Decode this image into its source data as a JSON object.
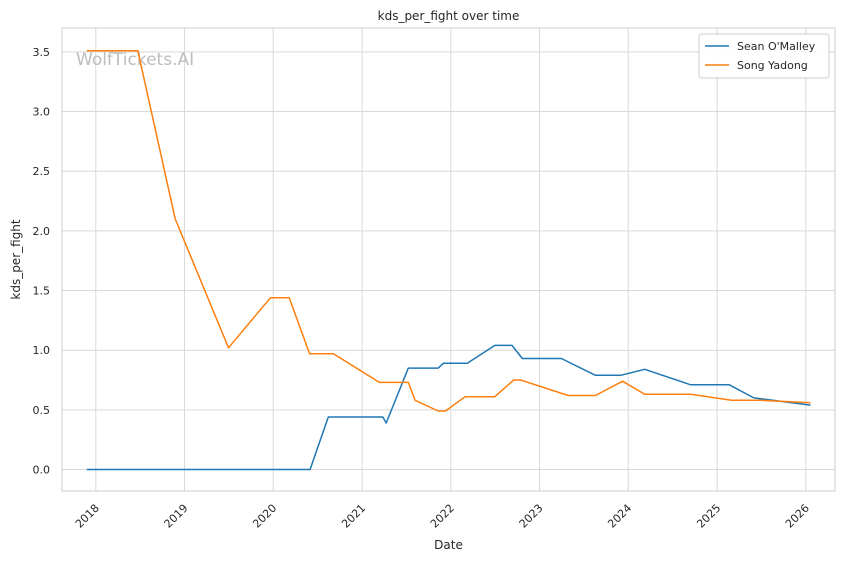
{
  "chart_data": {
    "type": "line",
    "title": "kds_per_fight over time",
    "xlabel": "Date",
    "ylabel": "kds_per_fight",
    "watermark": "WolfTickets.AI",
    "xlim": [
      "2017-08-15",
      "2026-05-01"
    ],
    "ylim": [
      -0.18,
      3.7
    ],
    "x_ticks": [
      "2018",
      "2019",
      "2020",
      "2021",
      "2022",
      "2023",
      "2024",
      "2025",
      "2026"
    ],
    "y_ticks": [
      "0.0",
      "0.5",
      "1.0",
      "1.5",
      "2.0",
      "2.5",
      "3.0",
      "3.5"
    ],
    "grid": true,
    "legend_position": "top-right",
    "series": [
      {
        "name": "Sean O'Malley",
        "color": "#1f77b4",
        "points": [
          [
            "2017-11-25",
            0.0
          ],
          [
            "2018-06-01",
            0.0
          ],
          [
            "2019-06-01",
            0.0
          ],
          [
            "2020-06-01",
            0.0
          ],
          [
            "2020-08-15",
            0.44
          ],
          [
            "2021-03-27",
            0.44
          ],
          [
            "2021-04-10",
            0.39
          ],
          [
            "2021-07-10",
            0.85
          ],
          [
            "2021-11-10",
            0.85
          ],
          [
            "2021-12-01",
            0.89
          ],
          [
            "2022-03-10",
            0.89
          ],
          [
            "2022-07-01",
            1.04
          ],
          [
            "2022-09-10",
            1.04
          ],
          [
            "2022-10-22",
            0.93
          ],
          [
            "2023-04-01",
            0.93
          ],
          [
            "2023-08-19",
            0.79
          ],
          [
            "2023-12-01",
            0.79
          ],
          [
            "2024-03-09",
            0.84
          ],
          [
            "2024-09-14",
            0.71
          ],
          [
            "2025-02-20",
            0.71
          ],
          [
            "2025-06-01",
            0.6
          ],
          [
            "2026-01-20",
            0.54
          ]
        ]
      },
      {
        "name": "Song Yadong",
        "color": "#ff7f0e",
        "points": [
          [
            "2017-11-25",
            3.51
          ],
          [
            "2018-06-23",
            3.51
          ],
          [
            "2018-11-24",
            2.1
          ],
          [
            "2019-07-01",
            1.02
          ],
          [
            "2019-12-21",
            1.44
          ],
          [
            "2020-03-07",
            1.44
          ],
          [
            "2020-05-30",
            0.97
          ],
          [
            "2020-09-05",
            0.97
          ],
          [
            "2021-03-13",
            0.73
          ],
          [
            "2021-07-10",
            0.73
          ],
          [
            "2021-08-07",
            0.58
          ],
          [
            "2021-11-10",
            0.49
          ],
          [
            "2021-12-10",
            0.49
          ],
          [
            "2022-03-01",
            0.61
          ],
          [
            "2022-07-01",
            0.61
          ],
          [
            "2022-09-17",
            0.75
          ],
          [
            "2022-10-15",
            0.75
          ],
          [
            "2023-04-29",
            0.62
          ],
          [
            "2023-08-19",
            0.62
          ],
          [
            "2023-12-09",
            0.74
          ],
          [
            "2024-03-09",
            0.63
          ],
          [
            "2024-09-14",
            0.63
          ],
          [
            "2025-03-01",
            0.58
          ],
          [
            "2025-07-01",
            0.58
          ],
          [
            "2026-01-20",
            0.56
          ]
        ]
      }
    ]
  }
}
